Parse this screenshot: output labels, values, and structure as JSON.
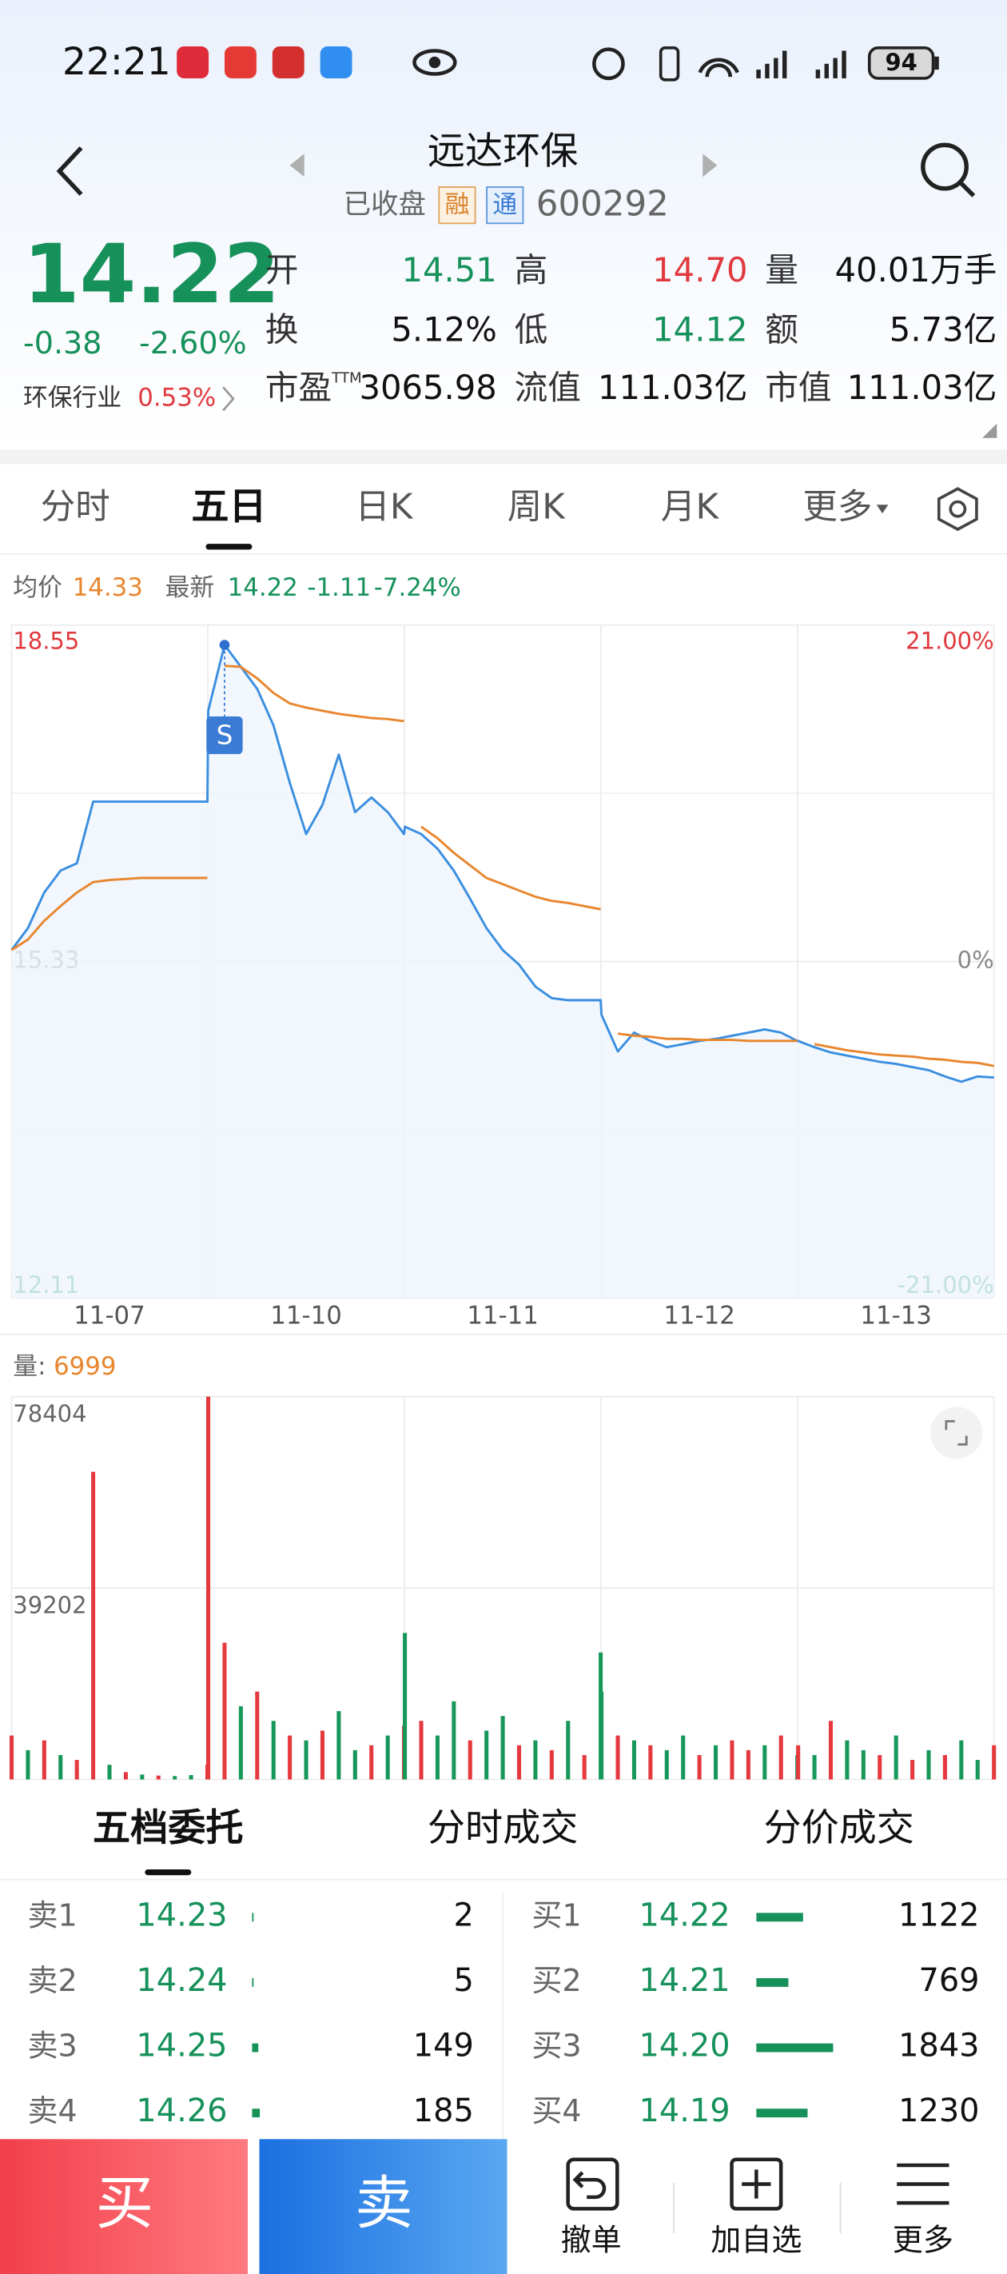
{
  "status": {
    "time": "22:21",
    "battery": "94"
  },
  "header": {
    "name": "远达环保",
    "state": "已收盘",
    "tag1": "融",
    "tag2": "通",
    "code": "600292"
  },
  "quote": {
    "price": "14.22",
    "change": "-0.38",
    "pct": "-2.60%",
    "industry": "环保行业",
    "industry_pct": "0.53%",
    "fields": [
      {
        "label": "开",
        "value": "14.51",
        "color": "#16915a"
      },
      {
        "label": "高",
        "value": "14.70",
        "color": "#e0393e"
      },
      {
        "label": "量",
        "value": "40.01万手",
        "color": "#111111"
      },
      {
        "label": "换",
        "value": "5.12%",
        "color": "#111111"
      },
      {
        "label": "低",
        "value": "14.12",
        "color": "#16915a"
      },
      {
        "label": "额",
        "value": "5.73亿",
        "color": "#111111"
      },
      {
        "label": "市盈",
        "sup": "TTM",
        "value": "3065.98",
        "color": "#111111"
      },
      {
        "label": "流值",
        "value": "111.03亿",
        "color": "#111111"
      },
      {
        "label": "市值",
        "value": "111.03亿",
        "color": "#111111"
      }
    ]
  },
  "tabs": [
    "分时",
    "五日",
    "日K",
    "周K",
    "月K",
    "更多"
  ],
  "active_tab": 1,
  "chart_data": [
    {
      "type": "line",
      "info": {
        "avg": "14.33",
        "last": "14.22",
        "change": "-1.11",
        "pct": "-7.24%"
      },
      "x": [
        0,
        20,
        40,
        60,
        80,
        100,
        120,
        140,
        160,
        180,
        200,
        220,
        240,
        241,
        261,
        281,
        301,
        321,
        341,
        361,
        381,
        401,
        421,
        441,
        461,
        481,
        482,
        502,
        522,
        542,
        562,
        582,
        602,
        622,
        642,
        662,
        682,
        702,
        722,
        723,
        743,
        763,
        783,
        803,
        823,
        843,
        863,
        883,
        903,
        923,
        943,
        963,
        964,
        984,
        1004,
        1024,
        1044,
        1064,
        1084,
        1104,
        1124,
        1144,
        1164,
        1184,
        1204
      ],
      "xlim": [
        0,
        1204
      ],
      "xticks": [
        {
          "value": 120,
          "label": "11-07"
        },
        {
          "value": 361,
          "label": "11-10"
        },
        {
          "value": 602,
          "label": "11-11"
        },
        {
          "value": 843,
          "label": "11-12"
        },
        {
          "value": 1084,
          "label": "11-13"
        }
      ],
      "ylim": [
        12.11,
        18.55
      ],
      "yticks": [
        12.11,
        15.33,
        18.55
      ],
      "y2lim": [
        -21,
        21
      ],
      "y2ticks": [
        {
          "value": -21,
          "label": "-21.00%"
        },
        {
          "value": 0,
          "label": "0%"
        },
        {
          "value": 21,
          "label": "21.00%"
        }
      ],
      "grid": true,
      "series": [
        {
          "name": "最新",
          "color": "#3a8ee0",
          "values": [
            15.44,
            15.65,
            15.99,
            16.2,
            16.27,
            16.86,
            16.86,
            16.86,
            16.86,
            16.86,
            16.86,
            16.86,
            16.86,
            17.73,
            18.36,
            18.15,
            17.94,
            17.59,
            17.04,
            16.55,
            16.83,
            17.31,
            16.76,
            16.9,
            16.76,
            16.55,
            16.62,
            16.55,
            16.41,
            16.2,
            15.93,
            15.65,
            15.44,
            15.3,
            15.09,
            14.98,
            14.96,
            14.96,
            14.96,
            14.82,
            14.47,
            14.65,
            14.57,
            14.51,
            14.54,
            14.57,
            14.59,
            14.62,
            14.65,
            14.68,
            14.65,
            14.57,
            14.57,
            14.51,
            14.46,
            14.43,
            14.4,
            14.37,
            14.35,
            14.32,
            14.29,
            14.23,
            14.18,
            14.23,
            14.22
          ]
        },
        {
          "name": "均价",
          "color": "#e8862e",
          "values": [
            15.44,
            15.54,
            15.72,
            15.86,
            15.99,
            16.09,
            16.11,
            16.12,
            16.13,
            16.13,
            16.13,
            16.13,
            16.13,
            null,
            18.16,
            18.15,
            18.04,
            17.9,
            17.8,
            17.76,
            17.73,
            17.7,
            17.68,
            17.66,
            17.65,
            17.63,
            null,
            16.62,
            16.51,
            16.37,
            16.25,
            16.13,
            16.07,
            16.01,
            15.95,
            15.91,
            15.89,
            15.86,
            15.83,
            null,
            14.64,
            14.62,
            14.61,
            14.59,
            14.59,
            14.58,
            14.58,
            14.58,
            14.57,
            14.57,
            14.57,
            14.57,
            null,
            14.54,
            14.51,
            14.48,
            14.46,
            14.44,
            14.43,
            14.42,
            14.4,
            14.39,
            14.37,
            14.36,
            14.33
          ]
        }
      ],
      "annotations": [
        {
          "label": "S",
          "x": 261
        }
      ]
    },
    {
      "type": "bar",
      "label": "量:",
      "x": [
        0,
        20,
        40,
        60,
        80,
        100,
        120,
        140,
        160,
        180,
        200,
        220,
        240,
        241,
        261,
        281,
        301,
        321,
        341,
        361,
        381,
        401,
        421,
        441,
        461,
        481,
        482,
        502,
        522,
        542,
        562,
        582,
        602,
        622,
        642,
        662,
        682,
        702,
        722,
        723,
        743,
        763,
        783,
        803,
        823,
        843,
        863,
        883,
        903,
        923,
        943,
        963,
        964,
        984,
        1004,
        1024,
        1044,
        1064,
        1084,
        1104,
        1124,
        1144,
        1164,
        1184,
        1204
      ],
      "xlim": [
        0,
        1204
      ],
      "ylim": [
        0,
        78404
      ],
      "yticks": [
        39202,
        78404
      ],
      "values": [
        9000,
        6000,
        8000,
        5000,
        4000,
        63000,
        3000,
        1500,
        1000,
        800,
        700,
        900,
        3000,
        78404,
        28000,
        15000,
        18000,
        12000,
        9000,
        8000,
        10000,
        14000,
        6000,
        7000,
        9000,
        11000,
        30000,
        12000,
        9000,
        16000,
        8000,
        10000,
        13000,
        7000,
        8000,
        6000,
        12000,
        5000,
        26000,
        18000,
        9000,
        8000,
        7000,
        6000,
        9000,
        5000,
        7000,
        8000,
        6000,
        7000,
        9000,
        5000,
        7000,
        5000,
        12000,
        8000,
        6000,
        5000,
        9000,
        4000,
        6000,
        5000,
        8000,
        4000,
        6999
      ],
      "colors": [
        "#e5393f",
        "#17985a",
        "#e5393f",
        "#17985a",
        "#e5393f",
        "#e5393f",
        "#17985a",
        "#e5393f",
        "#17985a",
        "#e5393f",
        "#17985a",
        "#17985a",
        "#e5393f",
        "#e5393f",
        "#e5393f",
        "#17985a",
        "#e5393f",
        "#17985a",
        "#e5393f",
        "#17985a",
        "#e5393f",
        "#17985a",
        "#17985a",
        "#e5393f",
        "#17985a",
        "#e5393f",
        "#17985a",
        "#e5393f",
        "#17985a",
        "#17985a",
        "#e5393f",
        "#17985a",
        "#17985a",
        "#e5393f",
        "#17985a",
        "#e5393f",
        "#17985a",
        "#e5393f",
        "#17985a",
        "#17985a",
        "#e5393f",
        "#17985a",
        "#e5393f",
        "#17985a",
        "#17985a",
        "#e5393f",
        "#17985a",
        "#e5393f",
        "#e5393f",
        "#17985a",
        "#e5393f",
        "#17985a",
        "#e5393f",
        "#17985a",
        "#e5393f",
        "#17985a",
        "#17985a",
        "#e5393f",
        "#17985a",
        "#e5393f",
        "#17985a",
        "#e5393f",
        "#17985a",
        "#17985a",
        "#e5393f"
      ]
    }
  ],
  "order_book": {
    "tabs": [
      "五档委托",
      "分时成交",
      "分价成交"
    ],
    "sell": [
      {
        "label": "卖1",
        "price": "14.23",
        "volume": 2
      },
      {
        "label": "卖2",
        "price": "14.24",
        "volume": 5
      },
      {
        "label": "卖3",
        "price": "14.25",
        "volume": 149
      },
      {
        "label": "卖4",
        "price": "14.26",
        "volume": 185
      }
    ],
    "buy": [
      {
        "label": "买1",
        "price": "14.22",
        "volume": 1122
      },
      {
        "label": "买2",
        "price": "14.21",
        "volume": 769
      },
      {
        "label": "买3",
        "price": "14.20",
        "volume": 1843
      },
      {
        "label": "买4",
        "price": "14.19",
        "volume": 1230
      }
    ]
  },
  "bottom": {
    "buy": "买",
    "sell": "卖",
    "actions": [
      "撤单",
      "加自选",
      "更多"
    ]
  }
}
